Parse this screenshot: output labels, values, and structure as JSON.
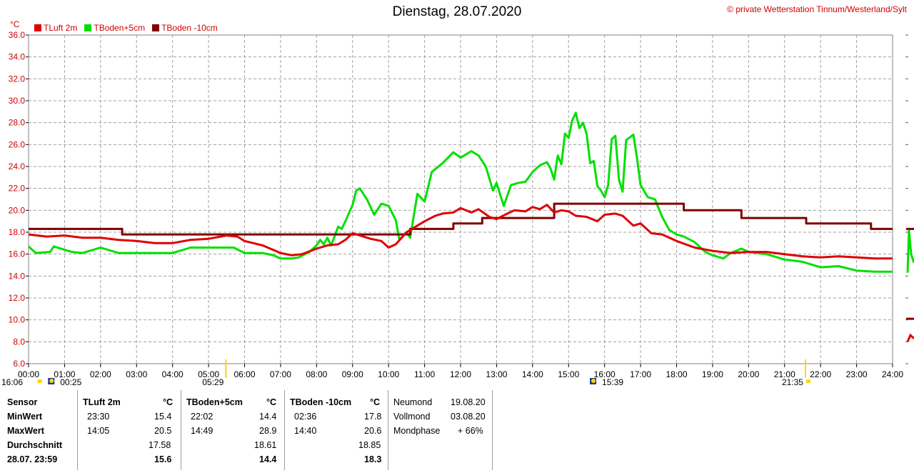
{
  "title": "Dienstag, 28.07.2020",
  "copyright": "private Wetterstation Tinnum/Westerland/Sylt",
  "copyright_symbol": "©",
  "y_unit": "°C",
  "colors": {
    "tluft": "#e00000",
    "tboden5": "#00e000",
    "tboden10": "#800000",
    "grid": "#a0a0a0",
    "sun": "#ffd700"
  },
  "legend": [
    "TLuft 2m",
    "TBoden+5cm",
    "TBoden -10cm"
  ],
  "sun_labels": {
    "left_time": "16:06",
    "moonrise": "00:25",
    "sunrise": "05:29",
    "moonset": "15:39",
    "sunset": "21:35"
  },
  "chart_data": {
    "type": "line",
    "title": "Dienstag, 28.07.2020",
    "ylabel": "°C",
    "ylim": [
      6,
      36
    ],
    "yticks": [
      "6.0",
      "8.0",
      "10.0",
      "12.0",
      "14.0",
      "16.0",
      "18.0",
      "20.0",
      "22.0",
      "24.0",
      "26.0",
      "28.0",
      "30.0",
      "32.0",
      "34.0",
      "36.0"
    ],
    "xlim": [
      0,
      24
    ],
    "xticks": [
      "00:00",
      "01:00",
      "02:00",
      "03:00",
      "04:00",
      "05:00",
      "06:00",
      "07:00",
      "08:00",
      "09:00",
      "10:00",
      "11:00",
      "12:00",
      "13:00",
      "14:00",
      "15:00",
      "16:00",
      "17:00",
      "18:00",
      "19:00",
      "20:00",
      "21:00",
      "22:00",
      "23:00",
      "24:00"
    ],
    "grid": true,
    "legend_position": "top-left",
    "series": [
      {
        "name": "TLuft 2m",
        "x": [
          0,
          0.5,
          1,
          1.5,
          2,
          2.5,
          3,
          3.5,
          4,
          4.5,
          5,
          5.5,
          5.8,
          6,
          6.5,
          7,
          7.3,
          7.6,
          8,
          8.3,
          8.6,
          8.8,
          9,
          9.3,
          9.5,
          9.8,
          10,
          10.2,
          10.5,
          10.8,
          11,
          11.3,
          11.5,
          11.8,
          12,
          12.3,
          12.5,
          12.8,
          13,
          13.3,
          13.5,
          13.8,
          14,
          14.2,
          14.4,
          14.6,
          14.8,
          15,
          15.2,
          15.5,
          15.8,
          16,
          16.3,
          16.5,
          16.8,
          17,
          17.3,
          17.6,
          18,
          18.5,
          19,
          19.5,
          20,
          20.5,
          21,
          21.5,
          22,
          22.5,
          23,
          23.5,
          24
        ],
        "values": [
          17.8,
          17.6,
          17.7,
          17.5,
          17.5,
          17.3,
          17.2,
          17.0,
          17.0,
          17.3,
          17.4,
          17.7,
          17.6,
          17.2,
          16.8,
          16.1,
          15.9,
          16.0,
          16.5,
          16.8,
          16.9,
          17.3,
          17.9,
          17.6,
          17.4,
          17.2,
          16.6,
          16.9,
          18.0,
          18.6,
          19.0,
          19.5,
          19.7,
          19.8,
          20.2,
          19.8,
          20.1,
          19.4,
          19.2,
          19.7,
          20.0,
          19.9,
          20.3,
          20.1,
          20.5,
          19.8,
          20.0,
          19.9,
          19.5,
          19.4,
          19.0,
          19.6,
          19.7,
          19.5,
          18.6,
          18.8,
          17.9,
          17.8,
          17.2,
          16.6,
          16.3,
          16.1,
          16.2,
          16.2,
          16.0,
          15.8,
          15.7,
          15.8,
          15.7,
          15.6,
          15.6
        ]
      },
      {
        "name": "TBoden+5cm",
        "x": [
          0,
          0.1,
          0.2,
          0.6,
          0.7,
          1.2,
          1.5,
          2,
          2.5,
          3,
          3.5,
          4,
          4.5,
          5,
          5.5,
          5.7,
          6,
          6.5,
          6.8,
          7,
          7.3,
          7.5,
          7.8,
          8,
          8.1,
          8.2,
          8.3,
          8.4,
          8.5,
          8.6,
          8.7,
          8.8,
          9,
          9.1,
          9.2,
          9.4,
          9.6,
          9.8,
          10,
          10.2,
          10.3,
          10.5,
          10.6,
          10.8,
          11,
          11.2,
          11.5,
          11.8,
          12,
          12.3,
          12.5,
          12.7,
          12.9,
          13,
          13.2,
          13.4,
          13.6,
          13.8,
          14,
          14.2,
          14.4,
          14.5,
          14.6,
          14.7,
          14.8,
          14.9,
          15,
          15.1,
          15.2,
          15.3,
          15.4,
          15.5,
          15.6,
          15.7,
          15.8,
          15.9,
          16,
          16.1,
          16.2,
          16.3,
          16.4,
          16.5,
          16.6,
          16.8,
          16.9,
          17,
          17.2,
          17.4,
          17.6,
          17.8,
          18,
          18.2,
          18.5,
          18.8,
          19,
          19.3,
          19.5,
          19.8,
          20,
          20.5,
          21,
          21.5,
          22,
          22.5,
          23,
          23.5,
          24
        ],
        "values": [
          16.7,
          16.4,
          16.1,
          16.2,
          16.7,
          16.2,
          16.1,
          16.6,
          16.1,
          16.1,
          16.1,
          16.1,
          16.6,
          16.6,
          16.6,
          16.6,
          16.1,
          16.1,
          15.9,
          15.6,
          15.6,
          15.7,
          16.2,
          16.8,
          17.3,
          16.9,
          17.5,
          16.8,
          17.6,
          18.5,
          18.3,
          19.0,
          20.5,
          21.8,
          22.0,
          21.0,
          19.6,
          20.6,
          20.4,
          19.1,
          17.3,
          18.0,
          17.5,
          21.5,
          20.8,
          23.5,
          24.3,
          25.3,
          24.8,
          25.4,
          25.0,
          24.0,
          21.8,
          22.5,
          20.4,
          22.3,
          22.5,
          22.6,
          23.5,
          24.1,
          24.4,
          23.8,
          22.8,
          25.0,
          24.2,
          27.0,
          26.6,
          28.2,
          28.9,
          27.5,
          28.0,
          27.0,
          24.3,
          24.5,
          22.2,
          21.8,
          21.2,
          22.3,
          26.5,
          26.8,
          22.8,
          21.7,
          26.4,
          26.9,
          24.8,
          22.3,
          21.2,
          21.0,
          19.4,
          18.2,
          17.8,
          17.6,
          17.1,
          16.2,
          15.9,
          15.6,
          16.1,
          16.5,
          16.2,
          16.0,
          15.5,
          15.3,
          14.8,
          14.9,
          14.5,
          14.4,
          14.4
        ]
      },
      {
        "name": "TBoden -10cm",
        "x": [
          0,
          2.6,
          2.6,
          7.9,
          7.9,
          10,
          10,
          10.6,
          10.6,
          11.8,
          11.8,
          12.6,
          12.6,
          13.4,
          13.4,
          13.8,
          13.8,
          14.6,
          14.6,
          15.6,
          15.6,
          16.4,
          16.4,
          17.2,
          17.2,
          18.2,
          18.2,
          19.8,
          19.8,
          21.6,
          21.6,
          23.4,
          23.4,
          24
        ],
        "values": [
          18.3,
          18.3,
          17.8,
          17.8,
          17.8,
          17.8,
          17.8,
          17.8,
          18.3,
          18.3,
          18.8,
          18.8,
          19.3,
          19.3,
          19.3,
          19.3,
          19.3,
          19.3,
          20.6,
          20.6,
          20.6,
          20.6,
          20.6,
          20.6,
          20.6,
          20.6,
          20.0,
          20.0,
          19.3,
          19.3,
          18.8,
          18.8,
          18.3,
          18.3
        ]
      }
    ]
  },
  "table": {
    "col1": {
      "header": "Sensor",
      "rows": [
        "MinWert",
        "MaxWert",
        "Durchschnitt",
        "28.07. 23:59"
      ]
    },
    "groups": [
      {
        "header": "TLuft 2m",
        "unit": "°C",
        "min_time": "23:30",
        "min_value": "15.4",
        "max_time": "14:05",
        "max_value": "20.5",
        "avg": "17.58",
        "current": "15.6"
      },
      {
        "header": "TBoden+5cm",
        "unit": "°C",
        "min_time": "22:02",
        "min_value": "14.4",
        "max_time": "14:49",
        "max_value": "28.9",
        "avg": "18.61",
        "current": "14.4"
      },
      {
        "header": "TBoden -10cm",
        "unit": "°C",
        "min_time": "02:36",
        "min_value": "17.8",
        "max_time": "14:40",
        "max_value": "20.6",
        "avg": "18.85",
        "current": "18.3"
      }
    ],
    "moon": [
      {
        "label": "Neumond",
        "value": "19.08.20"
      },
      {
        "label": "Vollmond",
        "value": "03.08.20"
      },
      {
        "label": "Mondphase",
        "value": "+ 66%"
      }
    ]
  }
}
